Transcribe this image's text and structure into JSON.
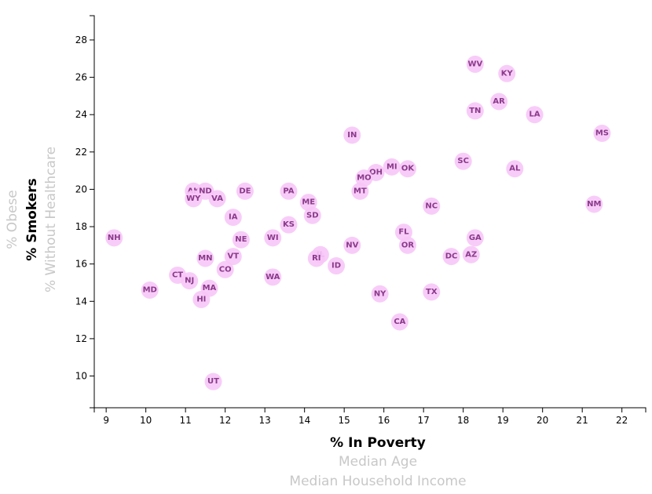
{
  "chart_data": {
    "type": "scatter",
    "x_axis": {
      "ticks": [
        9,
        10,
        11,
        12,
        13,
        14,
        15,
        16,
        17,
        18,
        19,
        20,
        21,
        22
      ],
      "range": [
        8.7,
        22.6
      ],
      "active_label": "% In Poverty",
      "inactive_labels": [
        "Median Age",
        "Median Household Income"
      ]
    },
    "y_axis": {
      "ticks": [
        10,
        12,
        14,
        16,
        18,
        20,
        22,
        24,
        26,
        28
      ],
      "range": [
        8.3,
        29.3
      ],
      "active_label": "% Smokers",
      "inactive_labels": [
        "% Obese",
        "% Without Healthcare"
      ]
    },
    "points": [
      {
        "state": "WV",
        "x": 18.3,
        "y": 26.7
      },
      {
        "state": "KY",
        "x": 19.1,
        "y": 26.2
      },
      {
        "state": "AR",
        "x": 18.9,
        "y": 24.7
      },
      {
        "state": "TN",
        "x": 18.3,
        "y": 24.2
      },
      {
        "state": "LA",
        "x": 19.8,
        "y": 24.0
      },
      {
        "state": "MS",
        "x": 21.5,
        "y": 23.0
      },
      {
        "state": "IN",
        "x": 15.2,
        "y": 22.9
      },
      {
        "state": "SC",
        "x": 18.0,
        "y": 21.5
      },
      {
        "state": "AL",
        "x": 19.3,
        "y": 21.1
      },
      {
        "state": "MI",
        "x": 16.2,
        "y": 21.2
      },
      {
        "state": "OK",
        "x": 16.6,
        "y": 21.1
      },
      {
        "state": "OH",
        "x": 15.8,
        "y": 20.9
      },
      {
        "state": "MO",
        "x": 15.5,
        "y": 20.6
      },
      {
        "state": "MT",
        "x": 15.4,
        "y": 19.9
      },
      {
        "state": "AK",
        "x": 11.2,
        "y": 19.9
      },
      {
        "state": "ND",
        "x": 11.5,
        "y": 19.9
      },
      {
        "state": "WY",
        "x": 11.2,
        "y": 19.5
      },
      {
        "state": "VA",
        "x": 11.8,
        "y": 19.5
      },
      {
        "state": "DE",
        "x": 12.5,
        "y": 19.9
      },
      {
        "state": "PA",
        "x": 13.6,
        "y": 19.9
      },
      {
        "state": "ME",
        "x": 14.1,
        "y": 19.3
      },
      {
        "state": "NC",
        "x": 17.2,
        "y": 19.1
      },
      {
        "state": "NM",
        "x": 21.3,
        "y": 19.2
      },
      {
        "state": "SD",
        "x": 14.2,
        "y": 18.6
      },
      {
        "state": "IA",
        "x": 12.2,
        "y": 18.5
      },
      {
        "state": "KS",
        "x": 13.6,
        "y": 18.1
      },
      {
        "state": "NH",
        "x": 9.2,
        "y": 17.4
      },
      {
        "state": "FL",
        "x": 16.5,
        "y": 17.7
      },
      {
        "state": "GA",
        "x": 18.3,
        "y": 17.4
      },
      {
        "state": "WI",
        "x": 13.2,
        "y": 17.4
      },
      {
        "state": "NE",
        "x": 12.4,
        "y": 17.3
      },
      {
        "state": "OR",
        "x": 16.6,
        "y": 17.0
      },
      {
        "state": "NV",
        "x": 15.2,
        "y": 17.0
      },
      {
        "state": "DC",
        "x": 17.7,
        "y": 16.4
      },
      {
        "state": "AZ",
        "x": 18.2,
        "y": 16.5
      },
      {
        "state": "IL",
        "x": 14.4,
        "y": 16.5
      },
      {
        "state": "RI",
        "x": 14.3,
        "y": 16.3
      },
      {
        "state": "VT",
        "x": 12.2,
        "y": 16.4
      },
      {
        "state": "MN",
        "x": 11.5,
        "y": 16.3
      },
      {
        "state": "ID",
        "x": 14.8,
        "y": 15.9
      },
      {
        "state": "CO",
        "x": 12.0,
        "y": 15.7
      },
      {
        "state": "CT",
        "x": 10.8,
        "y": 15.4
      },
      {
        "state": "NJ",
        "x": 11.1,
        "y": 15.1
      },
      {
        "state": "WA",
        "x": 13.2,
        "y": 15.3
      },
      {
        "state": "MD",
        "x": 10.1,
        "y": 14.6
      },
      {
        "state": "MA",
        "x": 11.6,
        "y": 14.7
      },
      {
        "state": "TX",
        "x": 17.2,
        "y": 14.5
      },
      {
        "state": "NY",
        "x": 15.9,
        "y": 14.4
      },
      {
        "state": "HI",
        "x": 11.4,
        "y": 14.1
      },
      {
        "state": "CA",
        "x": 16.4,
        "y": 12.9
      },
      {
        "state": "UT",
        "x": 11.7,
        "y": 9.7
      }
    ]
  }
}
